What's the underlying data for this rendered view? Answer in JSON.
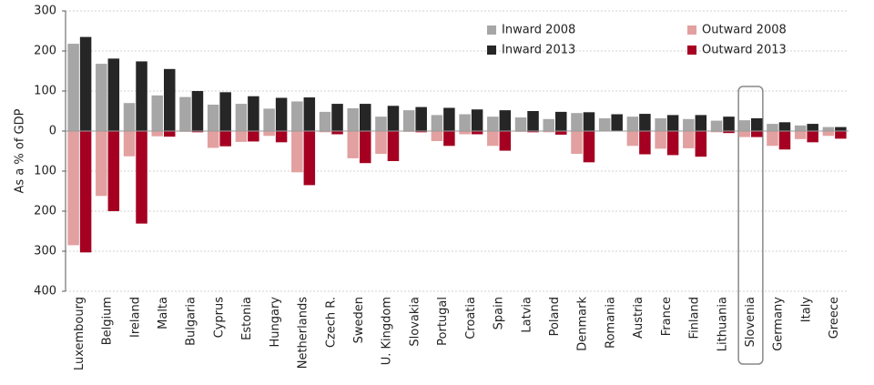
{
  "chart_data": {
    "type": "bar",
    "y_label": "As a % of GDP",
    "categories": [
      "Luxembourg",
      "Belgium",
      "Ireland",
      "Malta",
      "Bulgaria",
      "Cyprus",
      "Estonia",
      "Hungary",
      "Netherlands",
      "Czech R.",
      "Sweden",
      "U. Kingdom",
      "Slovakia",
      "Portugal",
      "Croatia",
      "Spain",
      "Latvia",
      "Poland",
      "Denmark",
      "Romania",
      "Austria",
      "France",
      "Finland",
      "Lithuania",
      "Slovenia",
      "Germany",
      "Italy",
      "Greece"
    ],
    "series": [
      {
        "name": "Inward 2008",
        "color": "#a6a6a6",
        "values": [
          218,
          168,
          70,
          89,
          85,
          66,
          68,
          56,
          74,
          48,
          57,
          36,
          52,
          40,
          42,
          36,
          34,
          30,
          45,
          32,
          36,
          32,
          30,
          26,
          27,
          18,
          14,
          10
        ]
      },
      {
        "name": "Inward 2013",
        "color": "#262626",
        "values": [
          235,
          181,
          174,
          155,
          100,
          97,
          87,
          83,
          84,
          68,
          68,
          63,
          60,
          58,
          54,
          52,
          50,
          48,
          47,
          42,
          43,
          40,
          40,
          36,
          32,
          22,
          18,
          10
        ]
      },
      {
        "name": "Outward 2008",
        "color": "#e3a0a0",
        "values": [
          -285,
          -162,
          -63,
          -13,
          -2,
          -42,
          -27,
          -12,
          -103,
          -3,
          -68,
          -57,
          -2,
          -25,
          -8,
          -37,
          -2,
          -3,
          -57,
          -1,
          -37,
          -44,
          -43,
          -3,
          -15,
          -37,
          -20,
          -12
        ]
      },
      {
        "name": "Outward 2013",
        "color": "#a50021",
        "values": [
          -303,
          -200,
          -231,
          -14,
          -3,
          -38,
          -26,
          -28,
          -135,
          -8,
          -80,
          -75,
          -3,
          -37,
          -8,
          -49,
          -3,
          -9,
          -78,
          -1,
          -58,
          -60,
          -64,
          -5,
          -15,
          -46,
          -28,
          -19
        ]
      }
    ],
    "ylim": [
      -400,
      300
    ],
    "yticks": [
      300,
      200,
      100,
      0,
      {
        "value": -100,
        "label": "100"
      },
      {
        "value": -200,
        "label": "200"
      },
      {
        "value": -300,
        "label": "300"
      },
      {
        "value": -400,
        "label": "400"
      }
    ],
    "grid": true,
    "highlight": "Slovenia"
  }
}
